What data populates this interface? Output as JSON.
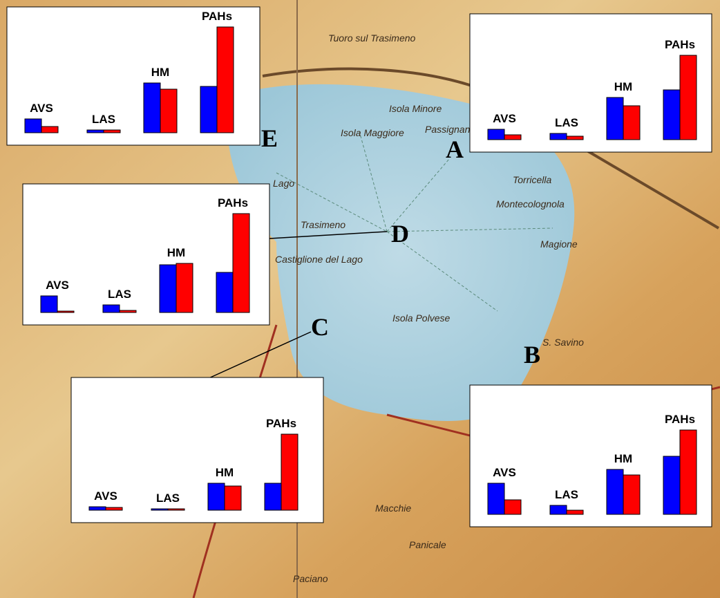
{
  "chart_data": [
    {
      "type": "bar",
      "title": "E",
      "categories": [
        "AVS",
        "LAS",
        "HM",
        "PAHs"
      ],
      "ylim": [
        0,
        160
      ],
      "series": [
        {
          "color": "#0000ff",
          "values": [
            20,
            4,
            72,
            67
          ]
        },
        {
          "color": "#ff0000",
          "values": [
            9,
            4,
            63,
            153
          ]
        }
      ]
    },
    {
      "type": "bar",
      "title": "A",
      "categories": [
        "AVS",
        "LAS",
        "HM",
        "PAHs"
      ],
      "ylim": [
        0,
        160
      ],
      "series": [
        {
          "color": "#0000ff",
          "values": [
            15,
            9,
            61,
            72
          ]
        },
        {
          "color": "#ff0000",
          "values": [
            7,
            5,
            49,
            122
          ]
        }
      ]
    },
    {
      "type": "bar",
      "title": "D",
      "categories": [
        "AVS",
        "LAS",
        "HM",
        "PAHs"
      ],
      "ylim": [
        0,
        160
      ],
      "series": [
        {
          "color": "#0000ff",
          "values": [
            24,
            11,
            69,
            58
          ]
        },
        {
          "color": "#ff0000",
          "values": [
            2,
            3,
            71,
            143
          ]
        }
      ]
    },
    {
      "type": "bar",
      "title": "C",
      "categories": [
        "AVS",
        "LAS",
        "HM",
        "PAHs"
      ],
      "ylim": [
        0,
        160
      ],
      "series": [
        {
          "color": "#0000ff",
          "values": [
            5,
            2,
            39,
            39
          ]
        },
        {
          "color": "#ff0000",
          "values": [
            4,
            2,
            35,
            110
          ]
        }
      ]
    },
    {
      "type": "bar",
      "title": "B",
      "categories": [
        "AVS",
        "LAS",
        "HM",
        "PAHs"
      ],
      "ylim": [
        0,
        160
      ],
      "series": [
        {
          "color": "#0000ff",
          "values": [
            45,
            13,
            65,
            84
          ]
        },
        {
          "color": "#ff0000",
          "values": [
            21,
            6,
            57,
            122
          ]
        }
      ]
    }
  ],
  "map_labels": [
    "Tuoro sul Trasimeno",
    "Isola Minore",
    "Isola Maggiore",
    "Passignano",
    "Lago",
    "Trasimeno",
    "Torricella",
    "Montecolognola",
    "Magione",
    "Castiglione del Lago",
    "S. Savino",
    "Isola Polvese",
    "Panicale",
    "Paciano",
    "Macchie"
  ]
}
